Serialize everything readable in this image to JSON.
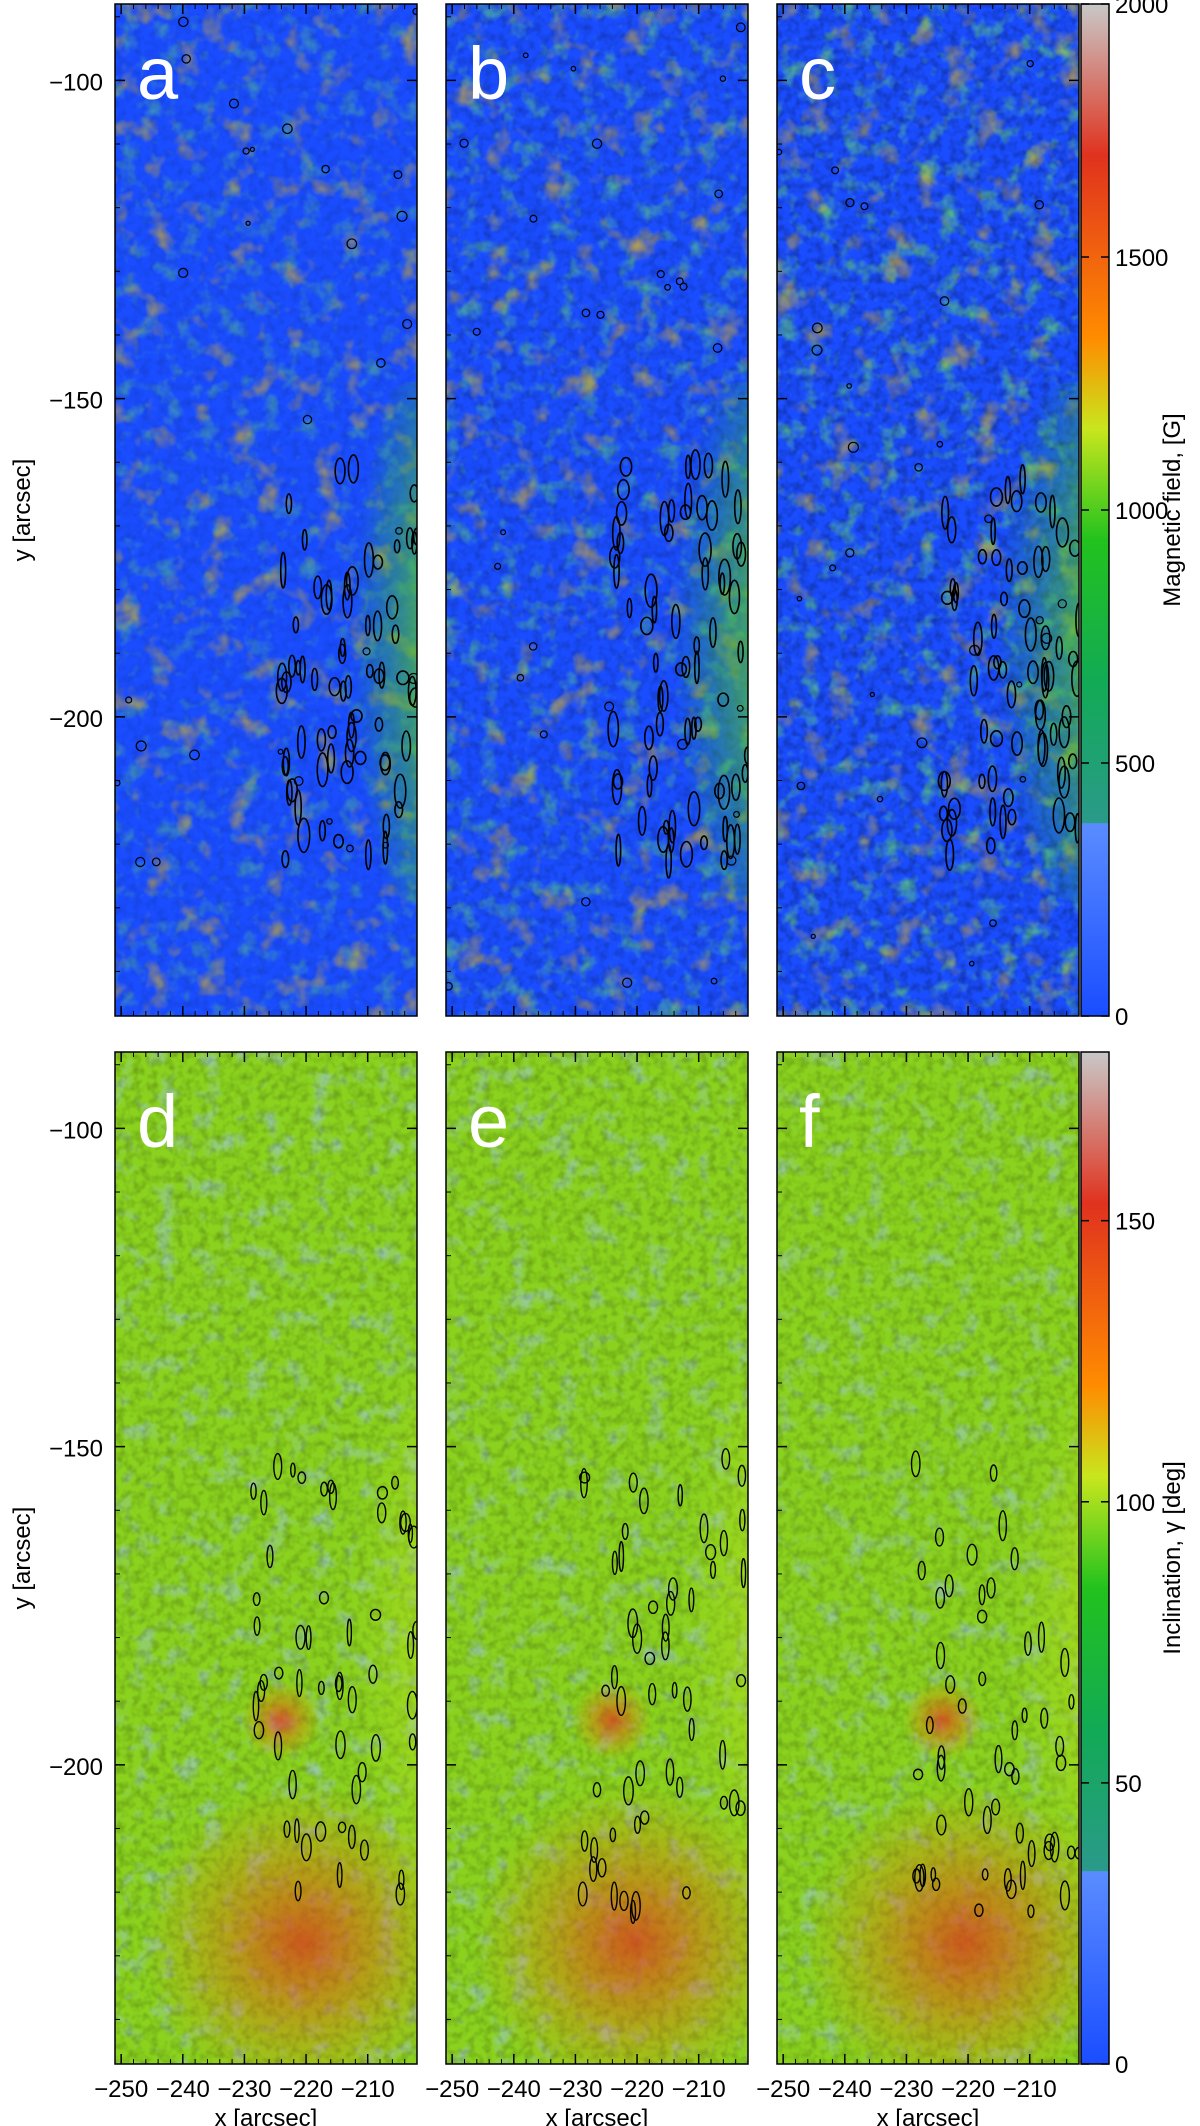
{
  "chart_data": [
    {
      "type": "heatmap",
      "panels": [
        {
          "label": "a"
        },
        {
          "label": "b"
        },
        {
          "label": "c"
        }
      ],
      "ylabel": "y [arcsec]",
      "y_ticks": [
        -100,
        -150,
        -200
      ],
      "ylim": [
        -247,
        -88
      ],
      "colorbar": {
        "label": "Magnetic field, [G]",
        "ticks": [
          0,
          500,
          1000,
          1500,
          2000
        ],
        "range": [
          0,
          2000
        ]
      }
    },
    {
      "type": "heatmap",
      "panels": [
        {
          "label": "d"
        },
        {
          "label": "e"
        },
        {
          "label": "f"
        }
      ],
      "ylabel": "y [arcsec]",
      "y_ticks": [
        -100,
        -150,
        -200
      ],
      "ylim": [
        -247,
        -88
      ],
      "xlabel": "x [arcsec]",
      "x_ticks": [
        -250,
        -240,
        -230,
        -220,
        -210
      ],
      "xlim": [
        -251,
        -202
      ],
      "colorbar": {
        "label": "Inclination, γ [deg]",
        "ticks": [
          0,
          50,
          100,
          150
        ],
        "range": [
          0,
          180
        ]
      }
    }
  ],
  "colors": {
    "blue": "#1a4dff",
    "light_blue": "#5a8cff",
    "teal": "#2a9a8a",
    "green": "#22c21e",
    "yellow_green": "#b4e61e",
    "yellow": "#e6e61e",
    "orange": "#ff8c00",
    "red": "#e0321e",
    "grey": "#c8c8c8"
  }
}
